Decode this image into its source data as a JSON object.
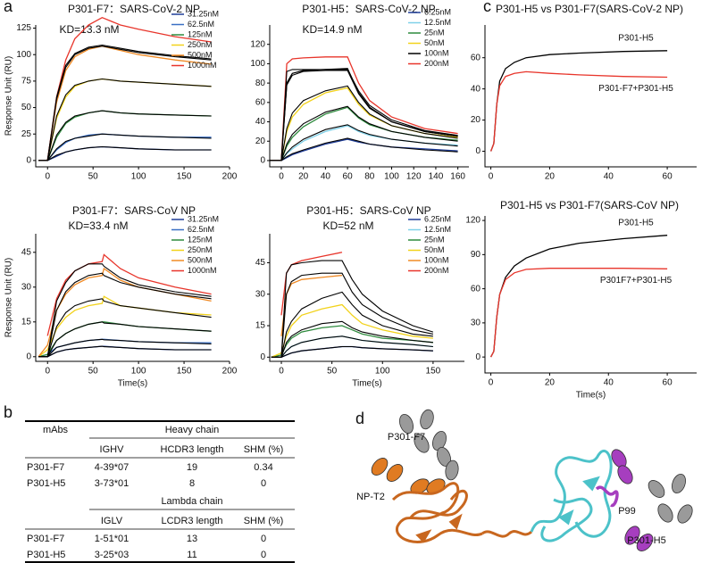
{
  "panel_labels": [
    "a",
    "b",
    "c",
    "d"
  ],
  "chart_data": [
    {
      "type": "line",
      "title": "P301-F7：SARS-CoV-2 NP",
      "annotation": "KD=13.3 nM",
      "ylabel": "Response Unit (RU)",
      "legend": "upper right",
      "fit_color": "#000000",
      "x": [
        -10,
        0,
        10,
        20,
        30,
        45,
        60,
        80,
        100,
        140,
        180
      ],
      "series": [
        {
          "name": "31.25nM",
          "color": "#1f3d99",
          "values": [
            0,
            0,
            4,
            8,
            10,
            12,
            13,
            12,
            11,
            10,
            10
          ],
          "fit": [
            0,
            0,
            5,
            8,
            10,
            12,
            13,
            12,
            11,
            10,
            10
          ]
        },
        {
          "name": "62.5nM",
          "color": "#3a6fc4",
          "values": [
            0,
            0,
            10,
            17,
            21,
            24,
            25,
            24,
            23,
            22,
            22
          ],
          "fit": [
            0,
            0,
            11,
            18,
            21,
            23,
            25,
            24,
            23,
            22,
            21
          ]
        },
        {
          "name": "125nM",
          "color": "#2e8b3e",
          "values": [
            0,
            0,
            22,
            35,
            41,
            45,
            47,
            45,
            44,
            43,
            42
          ],
          "fit": [
            0,
            0,
            24,
            36,
            42,
            45,
            47,
            45,
            44,
            43,
            42
          ]
        },
        {
          "name": "250nM",
          "color": "#f2d21b",
          "values": [
            0,
            0,
            40,
            60,
            70,
            75,
            77,
            75,
            74,
            72,
            70
          ],
          "fit": [
            0,
            0,
            42,
            62,
            71,
            75,
            77,
            75,
            74,
            72,
            70
          ]
        },
        {
          "name": "500nM",
          "color": "#f08a24",
          "values": [
            0,
            0,
            55,
            85,
            98,
            105,
            108,
            104,
            100,
            95,
            91
          ],
          "fit": [
            0,
            0,
            58,
            88,
            100,
            106,
            108,
            105,
            102,
            98,
            95
          ]
        },
        {
          "name": "1000nM",
          "color": "#e8352b",
          "values": [
            0,
            0,
            60,
            95,
            115,
            128,
            135,
            128,
            124,
            117,
            112
          ],
          "fit": [
            0,
            0,
            60,
            90,
            101,
            107,
            109,
            106,
            103,
            99,
            96
          ]
        }
      ],
      "xlim": [
        -13,
        200
      ],
      "ylim": [
        -6,
        128
      ],
      "xticks": [
        0,
        50,
        100,
        150,
        200
      ],
      "yticks": [
        0,
        25,
        50,
        75,
        100,
        125
      ]
    },
    {
      "type": "line",
      "title": "P301-H5：SARS-CoV-2 NP",
      "annotation": "KD=14.9 nM",
      "legend": "upper right",
      "fit_color": "#000000",
      "x": [
        -10,
        0,
        5,
        10,
        20,
        40,
        60,
        70,
        80,
        100,
        130,
        160
      ],
      "series": [
        {
          "name": "6.25nM",
          "color": "#1f3d99",
          "values": [
            0,
            0,
            3,
            6,
            10,
            17,
            22,
            19,
            17,
            14,
            12,
            10
          ],
          "fit": [
            0,
            0,
            4,
            7,
            11,
            18,
            23,
            20,
            17,
            14,
            11,
            9
          ]
        },
        {
          "name": "12.5nM",
          "color": "#7fd0e8",
          "values": [
            0,
            0,
            7,
            12,
            20,
            30,
            36,
            30,
            26,
            22,
            18,
            16
          ],
          "fit": [
            0,
            0,
            8,
            14,
            22,
            32,
            37,
            31,
            27,
            22,
            18,
            15
          ]
        },
        {
          "name": "25nM",
          "color": "#2e8b3e",
          "values": [
            0,
            0,
            15,
            24,
            35,
            48,
            55,
            44,
            37,
            30,
            24,
            21
          ],
          "fit": [
            0,
            0,
            17,
            27,
            38,
            50,
            56,
            45,
            38,
            30,
            24,
            20
          ]
        },
        {
          "name": "50nM",
          "color": "#f2d21b",
          "values": [
            0,
            0,
            30,
            45,
            58,
            70,
            75,
            58,
            47,
            36,
            28,
            24
          ],
          "fit": [
            0,
            0,
            33,
            49,
            62,
            72,
            77,
            60,
            48,
            36,
            28,
            23
          ]
        },
        {
          "name": "100nM",
          "color": "#000000",
          "values": [
            0,
            0,
            80,
            90,
            93,
            94,
            95,
            70,
            55,
            40,
            30,
            25
          ],
          "fit": [
            0,
            0,
            78,
            88,
            92,
            93,
            93,
            69,
            54,
            40,
            30,
            25
          ]
        },
        {
          "name": "200nM",
          "color": "#e8352b",
          "values": [
            0,
            0,
            100,
            105,
            106,
            107,
            107,
            80,
            62,
            45,
            33,
            28
          ],
          "fit": [
            0,
            0,
            92,
            94,
            94,
            94,
            94,
            72,
            57,
            42,
            31,
            26
          ]
        }
      ],
      "xlim": [
        -10.5,
        170
      ],
      "ylim": [
        -6.5,
        140
      ],
      "xticks": [
        0,
        20,
        40,
        60,
        80,
        100,
        120,
        140,
        160
      ],
      "yticks": [
        0,
        20,
        40,
        60,
        80,
        100,
        120
      ]
    },
    {
      "type": "line",
      "title": "P301-F7：SARS-CoV NP",
      "annotation": "KD=33.4 nM",
      "ylabel": "Response Unit (RU)",
      "xlabel": "Time(s)",
      "legend": "upper right",
      "fit_color": "#000000",
      "x": [
        -10,
        0,
        10,
        20,
        30,
        45,
        60,
        62,
        80,
        100,
        140,
        180
      ],
      "series": [
        {
          "name": "31.25nM",
          "color": "#1f3d99",
          "values": [
            0,
            0,
            2,
            3,
            3.5,
            4,
            4.5,
            4.5,
            4,
            3.5,
            3,
            3
          ],
          "fit": [
            0,
            0,
            2,
            3,
            3.5,
            4,
            4.5,
            4.3,
            4,
            3.5,
            3,
            3
          ]
        },
        {
          "name": "62.5nM",
          "color": "#3a6fc4",
          "values": [
            0,
            1,
            4,
            5,
            6,
            7,
            7.5,
            7.5,
            7,
            6.5,
            6,
            6
          ],
          "fit": [
            0,
            0,
            4,
            5,
            6,
            7,
            7.5,
            7.3,
            7,
            6.5,
            6,
            5.5
          ]
        },
        {
          "name": "125nM",
          "color": "#2e8b3e",
          "values": [
            0,
            1,
            7,
            10,
            12,
            14,
            15,
            15,
            14,
            13,
            12,
            11
          ],
          "fit": [
            0,
            0,
            7,
            10,
            12,
            14,
            15,
            14.5,
            14,
            13,
            12,
            11
          ]
        },
        {
          "name": "250nM",
          "color": "#f2d21b",
          "values": [
            0,
            3,
            12,
            17,
            20,
            22,
            23,
            26,
            22,
            21,
            19,
            18
          ],
          "fit": [
            0,
            0,
            13,
            19,
            22,
            24,
            25,
            24,
            22,
            21,
            19,
            17
          ]
        },
        {
          "name": "500nM",
          "color": "#f08a24",
          "values": [
            0,
            5,
            20,
            27,
            31,
            34,
            35,
            38,
            33,
            30,
            27,
            24
          ],
          "fit": [
            0,
            0,
            20,
            28,
            32,
            35,
            36,
            35,
            32,
            30,
            27,
            25
          ]
        },
        {
          "name": "1000nM",
          "color": "#e8352b",
          "values": [
            null,
            9,
            25,
            33,
            37,
            40,
            41,
            44,
            38,
            34,
            30,
            27
          ],
          "fit": [
            0,
            0,
            24,
            32,
            37,
            40,
            40,
            39,
            34,
            31,
            28,
            26
          ]
        }
      ],
      "xlim": [
        -13,
        200
      ],
      "ylim": [
        -2,
        53
      ],
      "xticks": [
        0,
        50,
        100,
        150,
        200
      ],
      "yticks": [
        0,
        15,
        30,
        45
      ]
    },
    {
      "type": "line",
      "title": "P301-H5：SARS-CoV NP",
      "annotation": "KD=52 nM",
      "xlabel": "Time(s)",
      "legend": "upper right",
      "fit_color": "#000000",
      "x": [
        -10,
        0,
        5,
        10,
        20,
        40,
        60,
        70,
        80,
        100,
        130,
        150
      ],
      "series": [
        {
          "name": "6.25nM",
          "color": "#1f3d99",
          "values": [
            0,
            0,
            1,
            2,
            3,
            4,
            5,
            5,
            4.5,
            4,
            3.5,
            3
          ],
          "fit": [
            0,
            0,
            1,
            2,
            3,
            4,
            5,
            5,
            4.5,
            4,
            3.5,
            3
          ]
        },
        {
          "name": "12.5nM",
          "color": "#7fd0e8",
          "values": [
            0,
            0,
            3,
            5,
            7,
            9,
            10,
            9,
            8,
            7,
            6,
            5
          ],
          "fit": [
            0,
            0,
            3,
            5,
            7,
            9,
            10,
            9,
            8,
            7,
            6,
            5
          ]
        },
        {
          "name": "25nM",
          "color": "#2e8b3e",
          "values": [
            0,
            1,
            6,
            9,
            12,
            14,
            15,
            13,
            11,
            9,
            8,
            7
          ],
          "fit": [
            0,
            0,
            7,
            10,
            13,
            16,
            17,
            14,
            12,
            10,
            8,
            7
          ]
        },
        {
          "name": "50nM",
          "color": "#f2d21b",
          "values": [
            0,
            2,
            10,
            15,
            20,
            23,
            25,
            20,
            16,
            13,
            10,
            9
          ],
          "fit": [
            0,
            0,
            12,
            17,
            23,
            28,
            31,
            25,
            20,
            15,
            11,
            10
          ]
        },
        {
          "name": "100nM",
          "color": "#f08a24",
          "values": [
            null,
            10,
            30,
            35,
            37,
            38,
            39,
            null,
            null,
            null,
            null,
            null
          ],
          "fit": [
            0,
            0,
            30,
            36,
            39,
            40,
            40,
            31,
            25,
            19,
            13,
            11
          ]
        },
        {
          "name": "200nM",
          "color": "#e8352b",
          "values": [
            null,
            20,
            40,
            44,
            46,
            48,
            50,
            null,
            null,
            null,
            null,
            null
          ],
          "fit": [
            0,
            0,
            40,
            44,
            45,
            46,
            46,
            37,
            30,
            22,
            15,
            12
          ]
        }
      ],
      "xlim": [
        -11.5,
        181
      ],
      "ylim": [
        -2,
        58.8
      ],
      "xticks": [
        0,
        50,
        100,
        150
      ],
      "yticks": [
        0,
        15,
        30,
        45
      ]
    },
    {
      "type": "line",
      "title": "P301-H5 vs P301-F7(SARS-CoV-2 NP)",
      "legend": "inline",
      "x": [
        0,
        1,
        2,
        3,
        5,
        8,
        12,
        20,
        30,
        45,
        60
      ],
      "series": [
        {
          "name": "P301-H5",
          "color": "#000000",
          "values": [
            0,
            5,
            30,
            45,
            53,
            57,
            60,
            62,
            63,
            64,
            64.5
          ]
        },
        {
          "name": "P301-F7+P301-H5",
          "color": "#e8352b",
          "values": [
            0,
            5,
            30,
            42,
            48,
            50,
            51,
            50,
            49,
            48,
            47.5
          ]
        }
      ],
      "xlim": [
        -2,
        70
      ],
      "ylim": [
        -10,
        81
      ],
      "xticks": [
        0,
        20,
        40,
        60
      ],
      "yticks": [
        0,
        20,
        40,
        60
      ]
    },
    {
      "type": "line",
      "title": "P301-H5 vs P301-F7(SARS-CoV NP)",
      "xlabel": "Time(s)",
      "legend": "inline",
      "x": [
        0,
        1,
        2,
        3,
        5,
        8,
        12,
        20,
        30,
        45,
        60
      ],
      "series": [
        {
          "name": "P301-H5",
          "color": "#000000",
          "values": [
            0,
            5,
            35,
            55,
            70,
            80,
            87,
            95,
            100,
            104,
            107
          ]
        },
        {
          "name": "P301F7+P301-H5",
          "color": "#e8352b",
          "values": [
            0,
            5,
            35,
            55,
            68,
            74,
            77,
            78,
            78,
            78,
            77.5
          ]
        }
      ],
      "xlim": [
        -2,
        70
      ],
      "ylim": [
        -14,
        124
      ],
      "xticks": [
        0,
        20,
        40,
        60
      ],
      "yticks": [
        0,
        30,
        60,
        90,
        120
      ]
    }
  ],
  "table": {
    "header": "mAbs",
    "sections": [
      {
        "title": "Heavy chain",
        "columns": [
          "IGHV",
          "HCDR3 length",
          "SHM (%)"
        ],
        "rows": [
          [
            "P301-F7",
            "4-39*07",
            "19",
            "0.34"
          ],
          [
            "P301-H5",
            "3-73*01",
            "8",
            "0"
          ]
        ]
      },
      {
        "title": "Lambda chain",
        "columns": [
          "IGLV",
          "LCDR3 length",
          "SHM (%)"
        ],
        "rows": [
          [
            "P301-F7",
            "1-51*01",
            "13",
            "0"
          ],
          [
            "P301-H5",
            "3-25*03",
            "11",
            "0"
          ]
        ]
      }
    ]
  },
  "diagram": {
    "labels": [
      "P301-F7",
      "NP-T2",
      "P99",
      "P301-H5"
    ]
  }
}
